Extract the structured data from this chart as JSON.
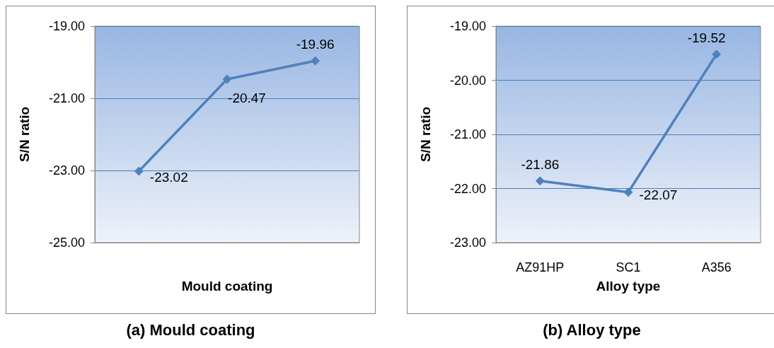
{
  "chart_data": [
    {
      "type": "line",
      "xlabel": "Mould coating",
      "ylabel": "S/N ratio",
      "annotations": [
        "(a) Mould coating"
      ],
      "categories": [
        null,
        null,
        null
      ],
      "series": [
        {
          "color": "#4f81bd",
          "values": [
            -23.02,
            -20.47,
            -19.96
          ]
        }
      ],
      "ylim": [
        -25,
        -19
      ],
      "yticks": [
        {
          "value": -25,
          "label": "-25.00"
        },
        {
          "value": -23,
          "label": "-23.00"
        },
        {
          "value": -21,
          "label": "-21.00"
        },
        {
          "value": -19,
          "label": "-19.00"
        }
      ],
      "grid": "y",
      "marker": "diamond",
      "line_style": "solid",
      "data_labels": true
    },
    {
      "type": "line",
      "xlabel": "Alloy type",
      "ylabel": "S/N ratio",
      "annotations": [
        "(b) Alloy type"
      ],
      "categories": [
        "AZ91HP",
        "SC1",
        "A356"
      ],
      "series": [
        {
          "color": "#4f81bd",
          "values": [
            -21.86,
            -22.07,
            -19.52
          ]
        }
      ],
      "ylim": [
        -23,
        -19
      ],
      "yticks": [
        {
          "value": -23,
          "label": "-23.00"
        },
        {
          "value": -22,
          "label": "-22.00"
        },
        {
          "value": -21,
          "label": "-21.00"
        },
        {
          "value": -20,
          "label": "-20.00"
        },
        {
          "value": -19,
          "label": "-19.00"
        }
      ],
      "grid": "y",
      "marker": "diamond",
      "line_style": "solid",
      "data_labels": true
    }
  ]
}
